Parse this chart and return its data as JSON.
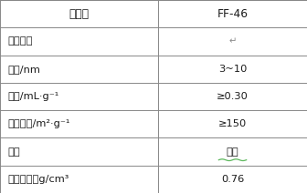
{
  "col1_header": "工业剂",
  "col2_header": "FF-46",
  "rows": [
    [
      "物化性质",
      "↵"
    ],
    [
      "孔径/nm",
      "3~10"
    ],
    [
      "孔容/mL·g⁻¹",
      "≥0.30"
    ],
    [
      "比表面积/m²·g⁻¹",
      "≥150"
    ],
    [
      "形状",
      "齿球"
    ],
    [
      "装填堆比，g/cm³",
      "0.76"
    ]
  ],
  "col_split": 0.515,
  "bg_color": "#ffffff",
  "border_color": "#888888",
  "text_color": "#1a1a1a",
  "green_underline_color": "#5cb85c",
  "font_size": 8.2,
  "header_font_size": 8.8,
  "lw": 0.7
}
